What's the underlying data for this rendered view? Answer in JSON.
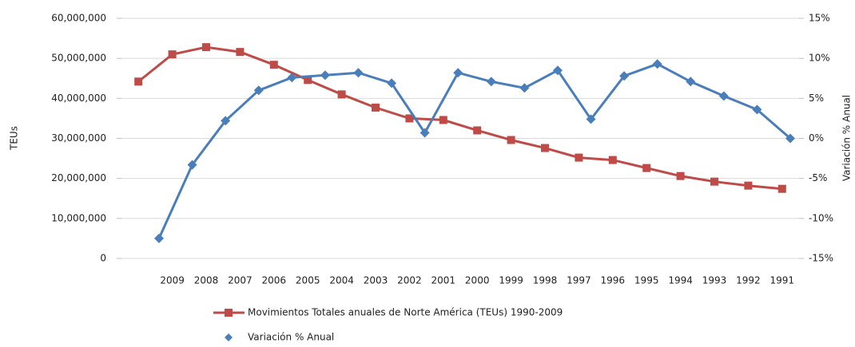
{
  "chart_data": {
    "type": "line",
    "categories": [
      null,
      "2009",
      "2008",
      "2007",
      "2006",
      "2005",
      "2004",
      "2003",
      "2002",
      "2001",
      "2000",
      "1999",
      "1998",
      "1997",
      "1996",
      "1995",
      "1994",
      "1993",
      "1992",
      "1991"
    ],
    "ylabel": "TEUs",
    "y2label": "Variación % Anual",
    "ylim": [
      0,
      60000000
    ],
    "yticks": [
      0,
      {
        "value": 10000000,
        "label": "10,000,000"
      },
      {
        "value": 20000000,
        "label": "20,000,000"
      },
      {
        "value": 30000000,
        "label": "30,000,000"
      },
      {
        "value": 40000000,
        "label": "40,000,000"
      },
      {
        "value": 50000000,
        "label": "50,000,000"
      },
      {
        "value": 60000000,
        "label": "60,000,000"
      }
    ],
    "y2lim": [
      -15,
      15
    ],
    "y2ticks": [
      {
        "value": -15,
        "label": "-15%"
      },
      {
        "value": -10,
        "label": "-10%"
      },
      {
        "value": -5,
        "label": "-5%"
      },
      {
        "value": 0,
        "label": "0%"
      },
      {
        "value": 5,
        "label": "5%"
      },
      {
        "value": 10,
        "label": "10%"
      },
      {
        "value": 15,
        "label": "15%"
      }
    ],
    "grid": true,
    "series": [
      {
        "name": "Movimientos Totales anuales de Norte América (TEUs) 1990-2009",
        "color": "#be4b48",
        "marker": "square",
        "values": [
          44200000,
          51000000,
          52800000,
          51600000,
          48400000,
          44600000,
          41000000,
          37700000,
          35000000,
          34600000,
          32000000,
          29600000,
          27600000,
          25200000,
          24600000,
          22600000,
          20600000,
          19200000,
          18200000,
          17400000
        ]
      },
      {
        "name": "Variación % Anual",
        "color": "#4a7ebb",
        "marker": "diamond",
        "axis": "y2",
        "values": [
          -12.5,
          -3.3,
          2.2,
          6.0,
          7.6,
          7.9,
          8.2,
          6.9,
          0.7,
          8.2,
          7.1,
          6.3,
          8.5,
          2.4,
          7.8,
          9.3,
          7.1,
          5.3,
          3.6,
          0.0
        ]
      }
    ]
  }
}
